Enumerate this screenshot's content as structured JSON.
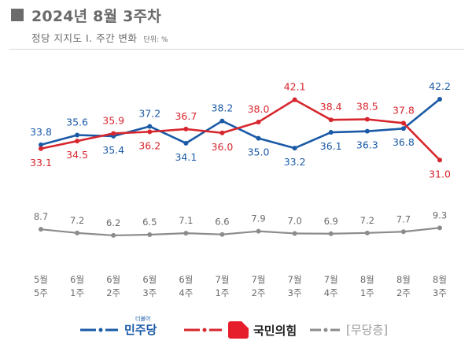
{
  "header": {
    "title": "2024년 8월 3주차",
    "subtitle": "정당 지지도 Ⅰ. 주간 변화",
    "unit": "단위: %"
  },
  "legend": {
    "democratic": "민주당",
    "democratic_small": "더불어",
    "ppp": "국민의힘",
    "none": "[무당층]"
  },
  "chart_data": {
    "type": "line",
    "x": [
      "5월\n5주",
      "6월\n1주",
      "6월\n2주",
      "6월\n3주",
      "6월\n4주",
      "7월\n1주",
      "7월\n2주",
      "7월\n3주",
      "7월\n4주",
      "8월\n1주",
      "8월\n2주",
      "8월\n3주"
    ],
    "x_month": [
      "5월",
      "6월",
      "6월",
      "6월",
      "6월",
      "7월",
      "7월",
      "7월",
      "7월",
      "8월",
      "8월",
      "8월"
    ],
    "x_week": [
      "5주",
      "1주",
      "2주",
      "3주",
      "4주",
      "1주",
      "2주",
      "3주",
      "4주",
      "1주",
      "2주",
      "3주"
    ],
    "series": [
      {
        "name": "민주당",
        "color": "#1a5aa6",
        "values": [
          33.8,
          35.6,
          35.4,
          37.2,
          34.1,
          38.2,
          35.0,
          33.2,
          36.1,
          36.3,
          36.8,
          42.2
        ]
      },
      {
        "name": "국민의힘",
        "color": "#d7262e",
        "values": [
          33.1,
          34.5,
          35.9,
          36.2,
          36.7,
          36.0,
          38.0,
          42.1,
          38.4,
          38.5,
          37.8,
          31.0
        ]
      },
      {
        "name": "[무당층]",
        "color": "#8c8c8c",
        "values": [
          8.7,
          7.2,
          6.2,
          6.5,
          7.1,
          6.6,
          7.9,
          7.0,
          6.9,
          7.2,
          7.7,
          9.3
        ]
      }
    ],
    "title": "2024년 8월 3주차",
    "subtitle": "정당 지지도 Ⅰ. 주간 변화",
    "xlabel": "",
    "ylabel": "",
    "grid": false,
    "legend_position": "bottom"
  }
}
